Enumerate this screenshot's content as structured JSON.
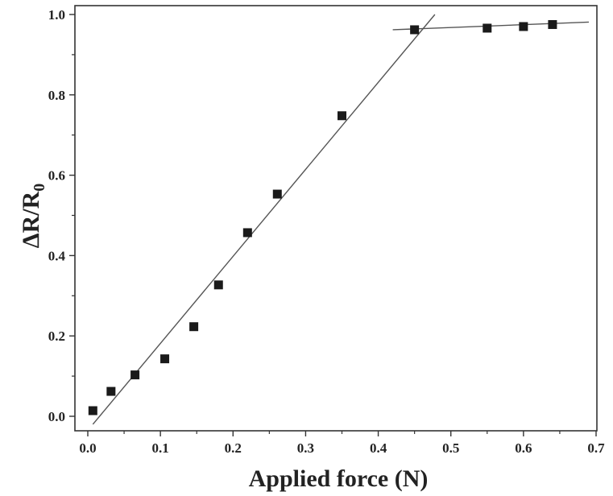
{
  "chart_data": {
    "type": "scatter",
    "title": "",
    "xlabel": "Applied force (N)",
    "ylabel": {
      "main": "ΔR/R",
      "subscript": "0"
    },
    "xlim": [
      0.0,
      0.7
    ],
    "ylim": [
      0.0,
      1.0
    ],
    "xticks": [
      "0.0",
      "0.1",
      "0.2",
      "0.3",
      "0.4",
      "0.5",
      "0.6",
      "0.7"
    ],
    "yticks": [
      "0.0",
      "0.2",
      "0.4",
      "0.6",
      "0.8",
      "1.0"
    ],
    "grid": false,
    "legend": "none",
    "marker_color": "#1a1a1a",
    "line_color": "#555555",
    "series": [
      {
        "marker": "square",
        "x": [
          0.007,
          0.032,
          0.065,
          0.106,
          0.146,
          0.18,
          0.22,
          0.261,
          0.35,
          0.45,
          0.55,
          0.6,
          0.64
        ],
        "y": [
          0.014,
          0.062,
          0.103,
          0.143,
          0.223,
          0.327,
          0.457,
          0.553,
          0.748,
          0.962,
          0.966,
          0.97,
          0.975
        ]
      }
    ],
    "fit_lines": [
      {
        "x": [
          0.007,
          0.478
        ],
        "y": [
          -0.02,
          1.0
        ]
      },
      {
        "x": [
          0.42,
          0.69
        ],
        "y": [
          0.962,
          0.981
        ]
      }
    ]
  }
}
